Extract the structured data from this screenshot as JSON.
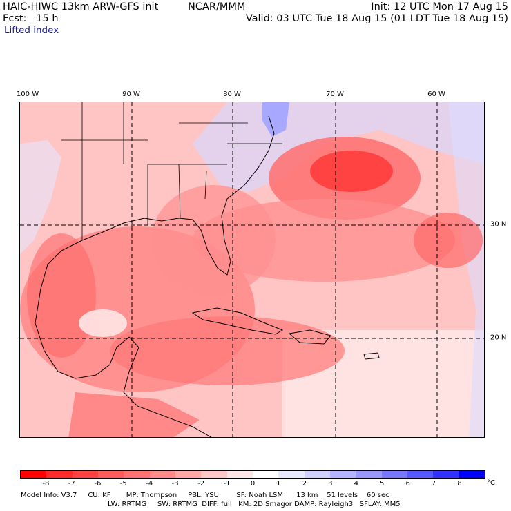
{
  "header": {
    "model": "HAIC-HIWC 13km ARW-GFS init",
    "org": "NCAR/MMM",
    "init": "Init: 12 UTC Mon 17 Aug 15",
    "fcst": "Fcst:   15 h",
    "valid": "Valid: 03 UTC Tue 18 Aug 15 (01 LDT Tue 18 Aug 15)",
    "field": "Lifted index"
  },
  "axes": {
    "lon_labels": [
      "100 W",
      "90 W",
      "80 W",
      "70 W",
      "60 W"
    ],
    "lat_labels": [
      "30 N",
      "20 N"
    ]
  },
  "colorbar": {
    "ticks": [
      "-8",
      "-7",
      "-6",
      "-5",
      "-4",
      "-3",
      "-2",
      "-1",
      "0",
      "1",
      "2",
      "3",
      "4",
      "5",
      "6",
      "7",
      "8"
    ],
    "unit": "°C",
    "colors": [
      "#ff0000",
      "#ff2a2a",
      "#ff4040",
      "#ff5a5a",
      "#ff7070",
      "#ff8a8a",
      "#ffa8a8",
      "#ffc8c8",
      "#ffe6e6",
      "#ffffff",
      "#e8e8ff",
      "#d0d0ff",
      "#b4b4ff",
      "#9898ff",
      "#7878ff",
      "#5858ff",
      "#3030ff",
      "#0000ff"
    ]
  },
  "footer": {
    "line1": "Model Info: V3.7     CU: KF       MP: Thompson     PBL: YSU        SF: Noah LSM      13 km    51 levels    60 sec",
    "line2": "LW: RRTMG     SW: RRTMG  DIFF: full   KM: 2D Smagor DAMP: Rayleigh3   SFLAY: MM5"
  }
}
